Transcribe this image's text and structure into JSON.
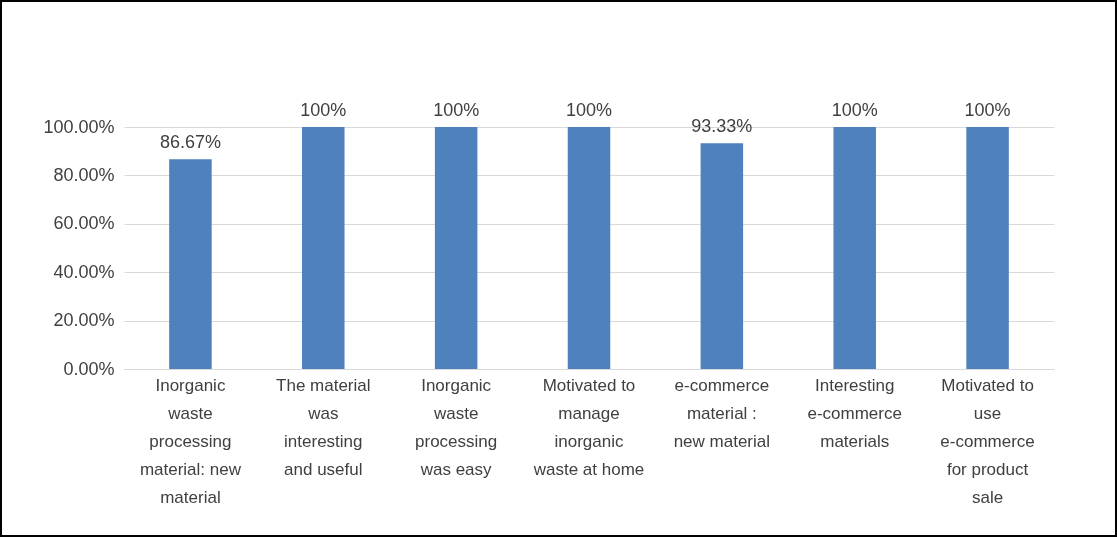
{
  "chart_data": {
    "type": "bar",
    "categories": [
      "Inorganic waste processing material: new material",
      "The material was interesting and useful",
      "Inorganic waste processing was easy",
      "Motivated to manage inorganic waste at home",
      "e-commerce material : new material",
      "Interesting e-commerce materials",
      "Motivated to use e-commerce for product sale"
    ],
    "values": [
      86.67,
      100,
      100,
      100,
      93.33,
      100,
      100
    ],
    "value_labels": [
      "86.67%",
      "100%",
      "100%",
      "100%",
      "93.33%",
      "100%",
      "100%"
    ],
    "color": "#4f81bd",
    "ylim": [
      0,
      100
    ],
    "yticks": [
      {
        "value": 0,
        "label": "0.00%"
      },
      {
        "value": 20,
        "label": "20.00%"
      },
      {
        "value": 40,
        "label": "40.00%"
      },
      {
        "value": 60,
        "label": "60.00%"
      },
      {
        "value": 80,
        "label": "80.00%"
      },
      {
        "value": 100,
        "label": "100.00%"
      }
    ],
    "grid": "y"
  }
}
